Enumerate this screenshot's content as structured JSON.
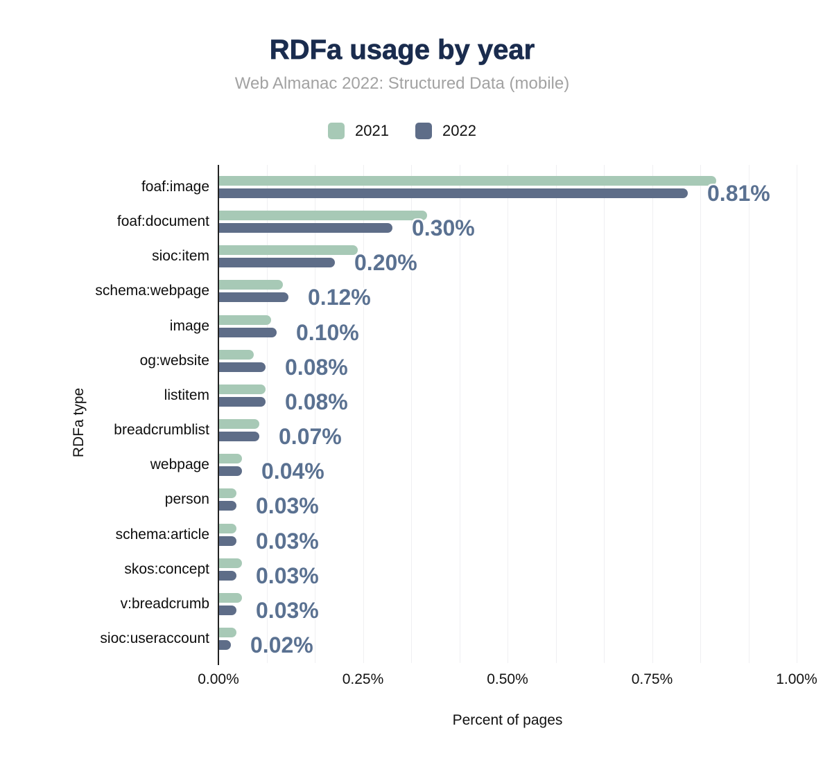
{
  "header": {
    "title": "RDFa usage by year",
    "subtitle": "Web Almanac 2022: Structured Data (mobile)"
  },
  "axes": {
    "x_label": "Percent of pages",
    "y_label": "RDFa type"
  },
  "chart_data": {
    "type": "bar",
    "orientation": "horizontal",
    "title": "RDFa usage by year",
    "subtitle": "Web Almanac 2022: Structured Data (mobile)",
    "xlabel": "Percent of pages",
    "ylabel": "RDFa type",
    "xlim_percent": [
      0,
      1.0
    ],
    "x_ticks": [
      "0.00%",
      "0.25%",
      "0.50%",
      "0.75%",
      "1.00%"
    ],
    "grid": "vertical-light",
    "legend_position": "top-center",
    "categories": [
      "foaf:image",
      "foaf:document",
      "sioc:item",
      "schema:webpage",
      "image",
      "og:website",
      "listitem",
      "breadcrumblist",
      "webpage",
      "person",
      "schema:article",
      "skos:concept",
      "v:breadcrumb",
      "sioc:useraccount"
    ],
    "series": [
      {
        "name": "2021",
        "color": "#a7c9b6",
        "values_percent": [
          0.86,
          0.36,
          0.24,
          0.11,
          0.09,
          0.06,
          0.08,
          0.07,
          0.04,
          0.03,
          0.03,
          0.04,
          0.04,
          0.03
        ]
      },
      {
        "name": "2022",
        "color": "#5e6d88",
        "values_percent": [
          0.81,
          0.3,
          0.2,
          0.12,
          0.1,
          0.08,
          0.08,
          0.07,
          0.04,
          0.03,
          0.03,
          0.03,
          0.03,
          0.02
        ]
      }
    ],
    "value_labels": [
      "0.81%",
      "0.30%",
      "0.20%",
      "0.12%",
      "0.10%",
      "0.08%",
      "0.08%",
      "0.07%",
      "0.04%",
      "0.03%",
      "0.03%",
      "0.03%",
      "0.03%",
      "0.02%"
    ]
  },
  "colors": {
    "title": "#1a2c4e",
    "subtitle": "#a2a2a2",
    "value_label": "#5a7191",
    "axis_line": "#222222",
    "gridline": "#efeff2",
    "text": "#111111",
    "background": "#ffffff"
  }
}
